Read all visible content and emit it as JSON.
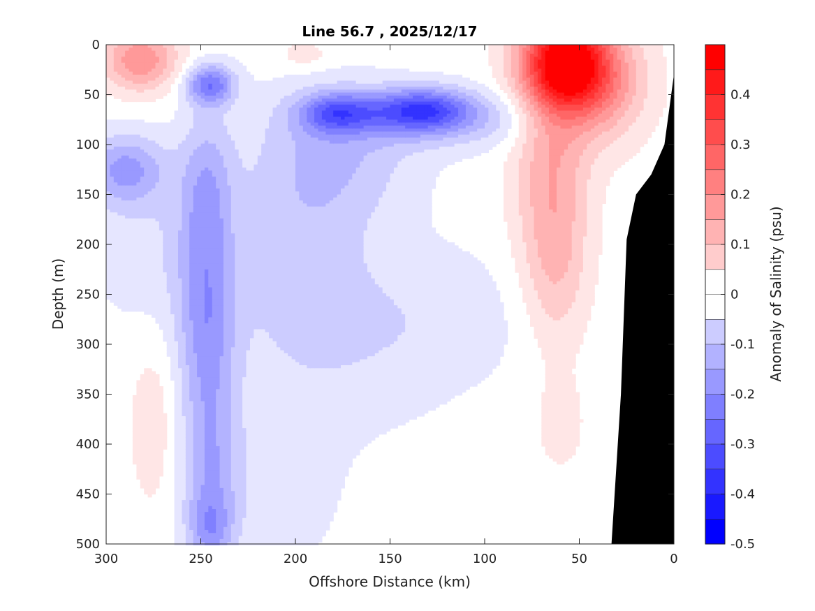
{
  "chart_data": {
    "type": "heatmap",
    "title": "Line 56.7 , 2025/12/17",
    "xlabel": "Offshore Distance (km)",
    "ylabel": "Depth (m)",
    "xlim": [
      300,
      0
    ],
    "ylim": [
      0,
      500
    ],
    "x_reversed": true,
    "y_reversed": true,
    "x_ticks": [
      "300",
      "250",
      "200",
      "150",
      "100",
      "50",
      "0"
    ],
    "y_ticks": [
      "0",
      "50",
      "100",
      "150",
      "200",
      "250",
      "300",
      "350",
      "400",
      "450",
      "500"
    ],
    "colorbar": {
      "label": "Anomaly of Salinity (psu)",
      "range": [
        -0.5,
        0.5
      ],
      "step": 0.05,
      "ticks": [
        "0.4",
        "0.3",
        "0.2",
        "0.1",
        "0",
        "-0.1",
        "-0.2",
        "-0.3",
        "-0.4",
        "-0.5"
      ],
      "negative_color": "#0000ff",
      "positive_color": "#ff0000",
      "neutral_color": "#ffffff"
    },
    "bathymetry_color": "#000000",
    "bathymetry": [
      {
        "x": 33,
        "depth": 500
      },
      {
        "x": 28,
        "depth": 350
      },
      {
        "x": 25,
        "depth": 195
      },
      {
        "x": 20,
        "depth": 150
      },
      {
        "x": 12,
        "depth": 130
      },
      {
        "x": 5,
        "depth": 100
      },
      {
        "x": 0,
        "depth": 30
      }
    ],
    "features": [
      {
        "name": "surface salty core",
        "x": 58,
        "depth": 15,
        "value": 0.45
      },
      {
        "name": "offshore salty patch",
        "x": 282,
        "depth": 15,
        "value": 0.2
      },
      {
        "name": "fresh core 1",
        "x": 133,
        "depth": 65,
        "value": -0.35
      },
      {
        "name": "fresh core 2",
        "x": 178,
        "depth": 65,
        "value": -0.3
      },
      {
        "name": "fresh core 3",
        "x": 245,
        "depth": 40,
        "value": -0.3
      },
      {
        "name": "fresh column",
        "x": 247,
        "depth": 280,
        "value": -0.25
      },
      {
        "name": "fresh deep core",
        "x": 245,
        "depth": 480,
        "value": -0.3
      },
      {
        "name": "fresh west lobe",
        "x": 290,
        "depth": 125,
        "value": -0.25
      },
      {
        "name": "salty plume",
        "x": 60,
        "depth": 200,
        "value": 0.12
      }
    ]
  }
}
